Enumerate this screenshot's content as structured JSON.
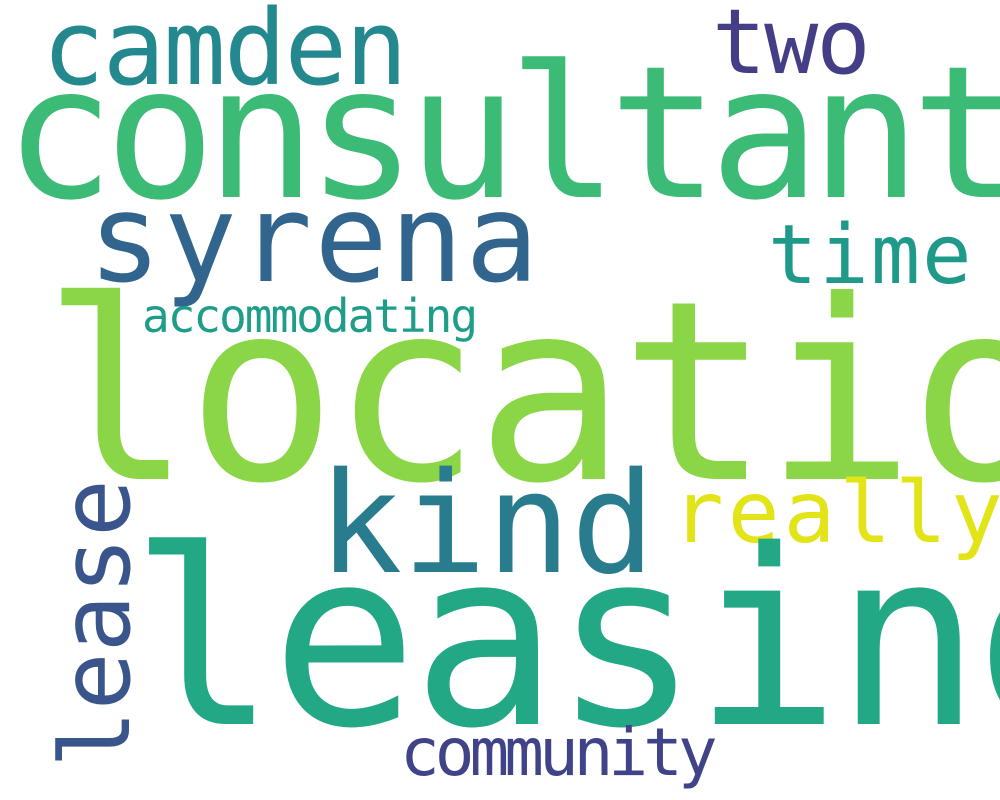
{
  "words": {
    "location": {
      "text": "location",
      "color": "#8bd646"
    },
    "leasing": {
      "text": "leasing",
      "color": "#22a884"
    },
    "consultant": {
      "text": "consultant",
      "color": "#3bbb75"
    },
    "syrena": {
      "text": "syrena",
      "color": "#31658e"
    },
    "camden": {
      "text": "camden",
      "color": "#24898e"
    },
    "kind": {
      "text": "kind",
      "color": "#287c8e"
    },
    "really": {
      "text": "really",
      "color": "#e2e418"
    },
    "two": {
      "text": "two",
      "color": "#433e85"
    },
    "time": {
      "text": "time",
      "color": "#1f9a8a"
    },
    "accommodating": {
      "text": "accommodating",
      "color": "#1e9d89"
    },
    "community": {
      "text": "community",
      "color": "#404387"
    },
    "lease": {
      "text": "lease",
      "color": "#3a548c"
    }
  }
}
